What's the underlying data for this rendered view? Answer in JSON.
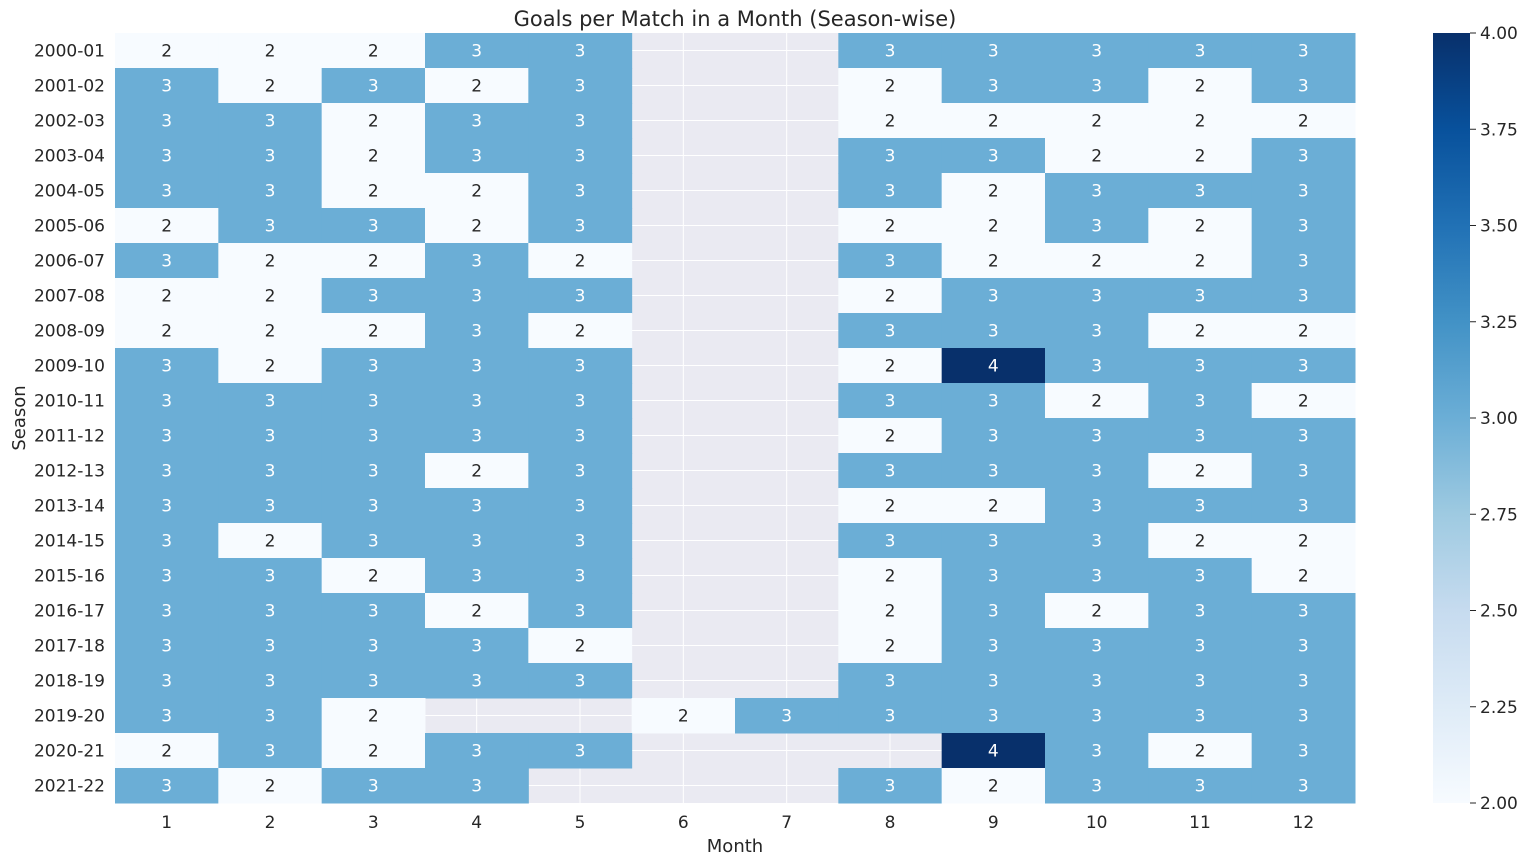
{
  "chart_data": {
    "type": "heatmap",
    "title": "Goals per Match in a Month (Season-wise)",
    "xlabel": "Month",
    "ylabel": "Season",
    "x_categories": [
      "1",
      "2",
      "3",
      "4",
      "5",
      "6",
      "7",
      "8",
      "9",
      "10",
      "11",
      "12"
    ],
    "y_categories": [
      "2000-01",
      "2001-02",
      "2002-03",
      "2003-04",
      "2004-05",
      "2005-06",
      "2006-07",
      "2007-08",
      "2008-09",
      "2009-10",
      "2010-11",
      "2011-12",
      "2012-13",
      "2013-14",
      "2014-15",
      "2015-16",
      "2016-17",
      "2017-18",
      "2018-19",
      "2019-20",
      "2020-21",
      "2021-22"
    ],
    "values": [
      [
        2,
        2,
        2,
        3,
        3,
        null,
        null,
        3,
        3,
        3,
        3,
        3
      ],
      [
        3,
        2,
        3,
        2,
        3,
        null,
        null,
        2,
        3,
        3,
        2,
        3
      ],
      [
        3,
        3,
        2,
        3,
        3,
        null,
        null,
        2,
        2,
        2,
        2,
        2
      ],
      [
        3,
        3,
        2,
        3,
        3,
        null,
        null,
        3,
        3,
        2,
        2,
        3
      ],
      [
        3,
        3,
        2,
        2,
        3,
        null,
        null,
        3,
        2,
        3,
        3,
        3
      ],
      [
        2,
        3,
        3,
        2,
        3,
        null,
        null,
        2,
        2,
        3,
        2,
        3
      ],
      [
        3,
        2,
        2,
        3,
        2,
        null,
        null,
        3,
        2,
        2,
        2,
        3
      ],
      [
        2,
        2,
        3,
        3,
        3,
        null,
        null,
        2,
        3,
        3,
        3,
        3
      ],
      [
        2,
        2,
        2,
        3,
        2,
        null,
        null,
        3,
        3,
        3,
        2,
        2
      ],
      [
        3,
        2,
        3,
        3,
        3,
        null,
        null,
        2,
        4,
        3,
        3,
        3
      ],
      [
        3,
        3,
        3,
        3,
        3,
        null,
        null,
        3,
        3,
        2,
        3,
        2
      ],
      [
        3,
        3,
        3,
        3,
        3,
        null,
        null,
        2,
        3,
        3,
        3,
        3
      ],
      [
        3,
        3,
        3,
        2,
        3,
        null,
        null,
        3,
        3,
        3,
        2,
        3
      ],
      [
        3,
        3,
        3,
        3,
        3,
        null,
        null,
        2,
        2,
        3,
        3,
        3
      ],
      [
        3,
        2,
        3,
        3,
        3,
        null,
        null,
        3,
        3,
        3,
        2,
        2
      ],
      [
        3,
        3,
        2,
        3,
        3,
        null,
        null,
        2,
        3,
        3,
        3,
        2
      ],
      [
        3,
        3,
        3,
        2,
        3,
        null,
        null,
        2,
        3,
        2,
        3,
        3
      ],
      [
        3,
        3,
        3,
        3,
        2,
        null,
        null,
        2,
        3,
        3,
        3,
        3
      ],
      [
        3,
        3,
        3,
        3,
        3,
        null,
        null,
        3,
        3,
        3,
        3,
        3
      ],
      [
        3,
        3,
        2,
        null,
        null,
        2,
        3,
        3,
        3,
        3,
        3,
        3
      ],
      [
        2,
        3,
        2,
        3,
        3,
        null,
        null,
        null,
        4,
        3,
        2,
        3
      ],
      [
        3,
        2,
        3,
        3,
        null,
        null,
        null,
        3,
        2,
        3,
        3,
        3
      ]
    ],
    "colorbar": {
      "min": 2.0,
      "max": 4.0,
      "ticks": [
        "2.00",
        "2.25",
        "2.50",
        "2.75",
        "3.00",
        "3.25",
        "3.50",
        "3.75",
        "4.00"
      ]
    },
    "colormap": "Blues",
    "missing_color": "#eaeaf2",
    "grid": true
  }
}
